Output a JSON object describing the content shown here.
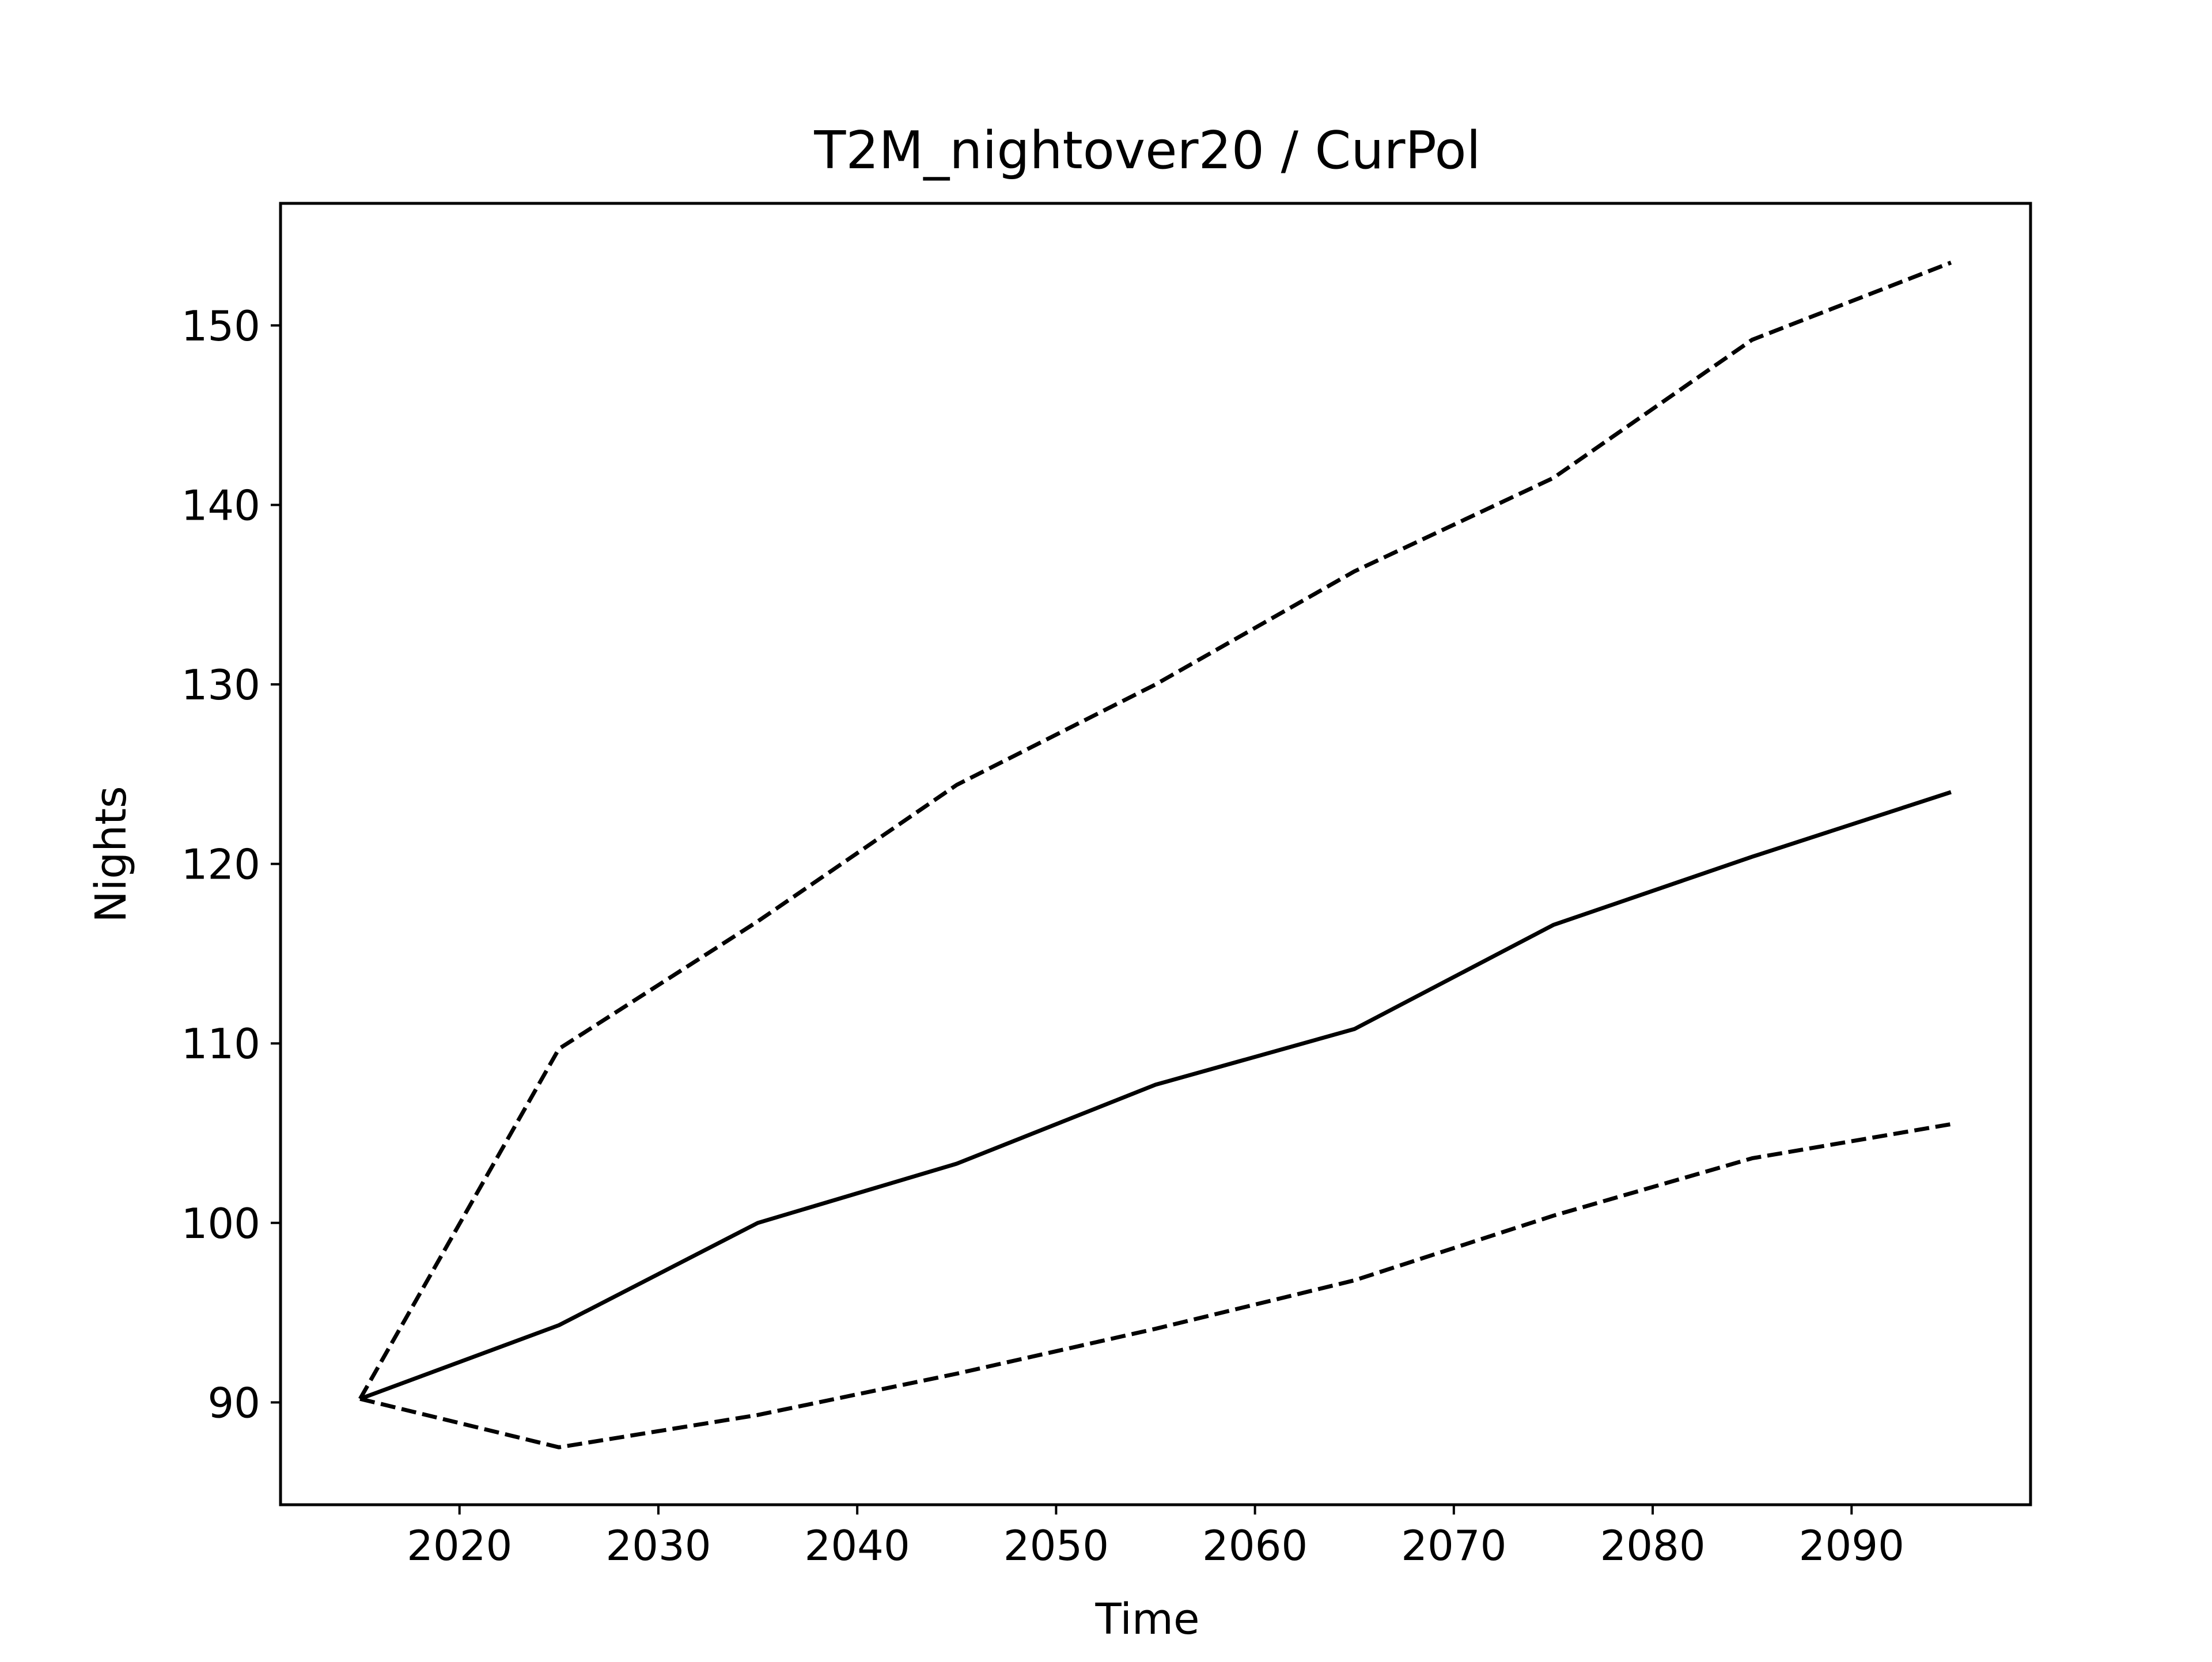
{
  "chart_data": {
    "type": "line",
    "title": "T2M_nightover20 / CurPol",
    "xlabel": "Time",
    "ylabel": "Nights",
    "xlim": [
      2011,
      2099
    ],
    "ylim": [
      84.3,
      156.8
    ],
    "xticks": [
      2020,
      2030,
      2040,
      2050,
      2060,
      2070,
      2080,
      2090
    ],
    "yticks": [
      90,
      100,
      110,
      120,
      130,
      140,
      150
    ],
    "grid": false,
    "x": [
      2015,
      2025,
      2035,
      2045,
      2055,
      2065,
      2075,
      2085,
      2095
    ],
    "series": [
      {
        "style": "solid",
        "color": "#000000",
        "values": [
          90.2,
          94.3,
          100.0,
          103.3,
          107.7,
          110.8,
          116.6,
          120.4,
          124.0
        ]
      },
      {
        "style": "dashed",
        "color": "#000000",
        "values": [
          90.2,
          109.7,
          116.8,
          124.4,
          130.0,
          136.3,
          141.5,
          149.2,
          153.5
        ]
      },
      {
        "style": "dashed",
        "color": "#000000",
        "values": [
          90.2,
          87.5,
          89.3,
          91.6,
          94.1,
          96.8,
          100.4,
          103.6,
          105.5
        ]
      }
    ]
  }
}
